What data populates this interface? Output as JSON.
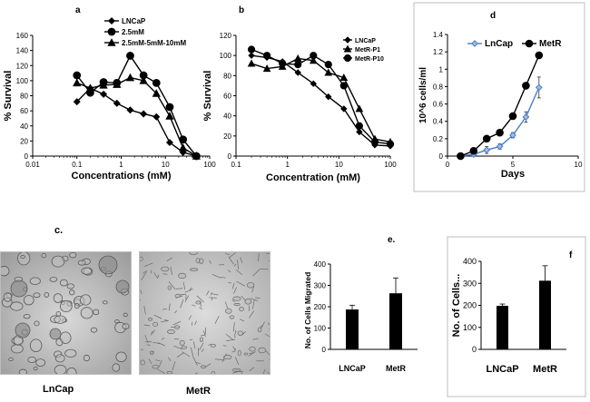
{
  "panels": {
    "a": "a",
    "b": "b",
    "c": "c.",
    "d": "d",
    "e": "e.",
    "f": "f"
  },
  "micrographs": {
    "left_caption": "LnCap",
    "right_caption": "MetR"
  },
  "chart_data": [
    {
      "id": "a",
      "type": "line",
      "xscale": "log",
      "xlabel": "Concentrations (mM)",
      "ylabel": "% Survival",
      "xlim": [
        0.01,
        100
      ],
      "ylim": [
        0,
        160
      ],
      "xticks": [
        "0.01",
        "0.1",
        "1",
        "10",
        "100"
      ],
      "yticks": [
        "0",
        "20",
        "40",
        "60",
        "80",
        "100",
        "120",
        "140",
        "160"
      ],
      "legend_position": "top-left",
      "series": [
        {
          "name": "LNCaP",
          "marker": "diamond",
          "x": [
            0.1,
            0.2,
            0.4,
            0.8,
            1.6,
            3.2,
            6.25,
            12.5,
            25,
            50
          ],
          "y": [
            72,
            90,
            82,
            70,
            61,
            56,
            52,
            18,
            5,
            0
          ]
        },
        {
          "name": "2.5mM",
          "marker": "circle",
          "x": [
            0.1,
            0.2,
            0.4,
            0.8,
            1.6,
            3.2,
            6.25,
            12.5,
            25,
            50
          ],
          "y": [
            107,
            84,
            98,
            97,
            133,
            107,
            97,
            65,
            22,
            0
          ]
        },
        {
          "name": "2.5mM-5mM-10mM",
          "marker": "triangle",
          "x": [
            0.1,
            0.2,
            0.4,
            0.8,
            1.6,
            3.2,
            6.25,
            12.5,
            25,
            50
          ],
          "y": [
            97,
            90,
            94,
            95,
            104,
            100,
            83,
            53,
            11,
            0
          ]
        }
      ]
    },
    {
      "id": "b",
      "type": "line",
      "xscale": "log",
      "xlabel": "Concentration (mM)",
      "ylabel": "% Survival",
      "xlim": [
        0.1,
        100
      ],
      "ylim": [
        0,
        120
      ],
      "xticks": [
        "0.1",
        "1",
        "10",
        "100"
      ],
      "yticks": [
        "0",
        "20",
        "40",
        "60",
        "80",
        "100",
        "120"
      ],
      "legend_position": "top-right",
      "series": [
        {
          "name": "LNCaP",
          "marker": "diamond",
          "x": [
            0.2,
            0.4,
            0.8,
            1.6,
            3.2,
            6.25,
            12.5,
            25,
            50,
            100
          ],
          "y": [
            100,
            98,
            94,
            83,
            72,
            59,
            47,
            24,
            11,
            10
          ]
        },
        {
          "name": "MetR-P1",
          "marker": "triangle",
          "x": [
            0.2,
            0.4,
            0.8,
            1.6,
            3.2,
            6.25,
            12.5,
            25,
            50,
            100
          ],
          "y": [
            92,
            87,
            89,
            97,
            95,
            83,
            78,
            47,
            17,
            14
          ]
        },
        {
          "name": "MetR-P10",
          "marker": "circle",
          "x": [
            0.2,
            0.4,
            0.8,
            1.6,
            3.2,
            6.25,
            12.5,
            25,
            50,
            100
          ],
          "y": [
            106,
            100,
            92,
            91,
            100,
            91,
            70,
            30,
            14,
            12
          ]
        }
      ]
    },
    {
      "id": "d",
      "type": "line",
      "xlabel": "Days",
      "ylabel": "10^6 cells/ml",
      "xlim": [
        0,
        10
      ],
      "ylim": [
        0,
        1.4
      ],
      "xticks": [
        "0",
        "5",
        "10"
      ],
      "yticks": [
        "0",
        "0.2",
        "0.4",
        "0.6",
        "0.8",
        "1",
        "1.2",
        "1.4"
      ],
      "legend_position": "top",
      "series": [
        {
          "name": "LnCap",
          "color": "#4a7cc4",
          "marker": "diamond",
          "x": [
            1,
            2,
            3,
            4,
            5,
            6,
            7
          ],
          "y": [
            0.0,
            0.02,
            0.07,
            0.11,
            0.24,
            0.45,
            0.79
          ],
          "err": [
            0,
            0,
            0.04,
            0.03,
            0.03,
            0.06,
            0.12
          ]
        },
        {
          "name": "MetR",
          "color": "#000000",
          "marker": "circle",
          "x": [
            1,
            2,
            3,
            4,
            5,
            6,
            7
          ],
          "y": [
            0.0,
            0.06,
            0.2,
            0.27,
            0.46,
            0.81,
            1.16
          ],
          "err": [
            0,
            0,
            0,
            0,
            0,
            0,
            0
          ]
        }
      ]
    },
    {
      "id": "e",
      "type": "bar",
      "ylabel": "No. of Cells Migrated",
      "categories": [
        "LNCaP",
        "MetR"
      ],
      "values": [
        187,
        263
      ],
      "errors": [
        20,
        72
      ],
      "ylim": [
        0,
        400
      ],
      "yticks": [
        "0",
        "100",
        "200",
        "300",
        "400"
      ]
    },
    {
      "id": "f",
      "type": "bar",
      "ylabel": "No. of Cells...",
      "categories": [
        "LNCaP",
        "MetR"
      ],
      "values": [
        198,
        312
      ],
      "errors": [
        8,
        68
      ],
      "ylim": [
        0,
        400
      ],
      "yticks": [
        "0",
        "100",
        "200",
        "300",
        "400"
      ]
    }
  ]
}
